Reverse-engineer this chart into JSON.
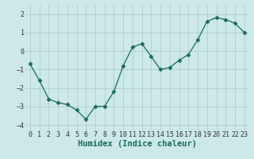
{
  "x": [
    0,
    1,
    2,
    3,
    4,
    5,
    6,
    7,
    8,
    9,
    10,
    11,
    12,
    13,
    14,
    15,
    16,
    17,
    18,
    19,
    20,
    21,
    22,
    23
  ],
  "y": [
    -0.7,
    -1.6,
    -2.6,
    -2.8,
    -2.9,
    -3.2,
    -3.7,
    -3.0,
    -3.0,
    -2.2,
    -0.8,
    0.2,
    0.4,
    -0.3,
    -1.0,
    -0.9,
    -0.5,
    -0.2,
    0.6,
    1.6,
    1.8,
    1.7,
    1.5,
    1.0
  ],
  "xlabel": "Humidex (Indice chaleur)",
  "xlim": [
    -0.5,
    23.5
  ],
  "ylim": [
    -4.3,
    2.5
  ],
  "yticks": [
    -4,
    -3,
    -2,
    -1,
    0,
    1,
    2
  ],
  "xticks": [
    0,
    1,
    2,
    3,
    4,
    5,
    6,
    7,
    8,
    9,
    10,
    11,
    12,
    13,
    14,
    15,
    16,
    17,
    18,
    19,
    20,
    21,
    22,
    23
  ],
  "line_color": "#1a6b5a",
  "marker": "D",
  "marker_size": 2.5,
  "bg_color": "#cce8e8",
  "grid_color": "#aac8c8",
  "xlabel_fontsize": 7.5,
  "tick_fontsize": 6.0
}
